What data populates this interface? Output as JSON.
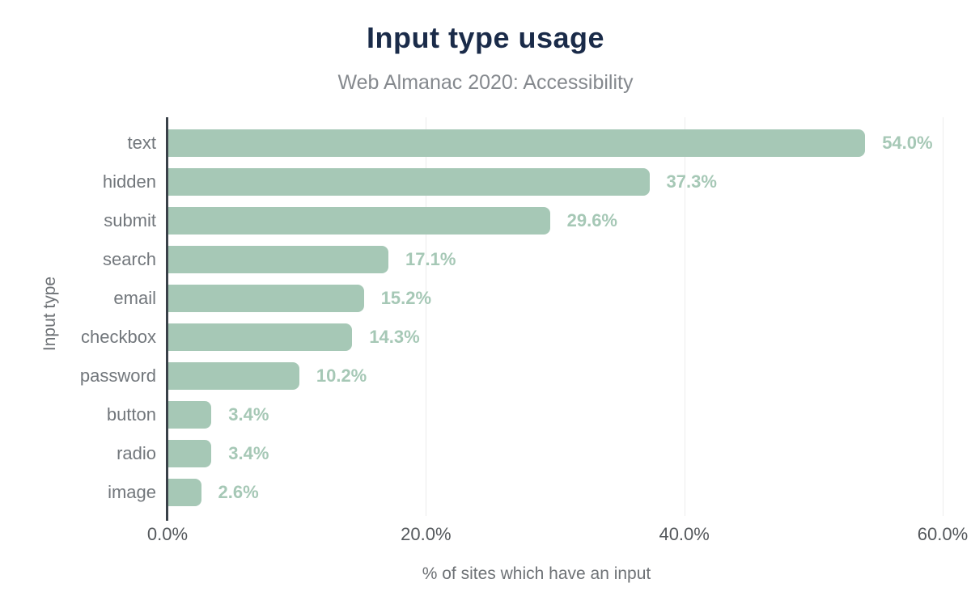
{
  "chart_data": {
    "type": "bar",
    "orientation": "horizontal",
    "title": "Input type usage",
    "subtitle": "Web Almanac 2020: Accessibility",
    "xlabel": "% of sites which have an input",
    "ylabel": "Input type",
    "categories": [
      "text",
      "hidden",
      "submit",
      "search",
      "email",
      "checkbox",
      "password",
      "button",
      "radio",
      "image"
    ],
    "values": [
      54.0,
      37.3,
      29.6,
      17.1,
      15.2,
      14.3,
      10.2,
      3.4,
      3.4,
      2.6
    ],
    "value_labels": [
      "54.0%",
      "37.3%",
      "29.6%",
      "17.1%",
      "15.2%",
      "14.3%",
      "10.2%",
      "3.4%",
      "3.4%",
      "2.6%"
    ],
    "xlim": [
      0,
      60
    ],
    "x_ticks": [
      0,
      20,
      40,
      60
    ],
    "x_tick_labels": [
      "0.0%",
      "20.0%",
      "40.0%",
      "60.0%"
    ],
    "grid": "vertical",
    "legend": "none",
    "colors": {
      "bar": "#a6c8b6",
      "value_label": "#a6c8b6",
      "title": "#1a2b49",
      "subtitle": "#85898e",
      "category_label": "#72777c",
      "tick_label": "#54585c",
      "axis_title": "#6e7276",
      "axis_line": "#3a4149",
      "gridline": "#ececec",
      "background": "#ffffff"
    }
  }
}
